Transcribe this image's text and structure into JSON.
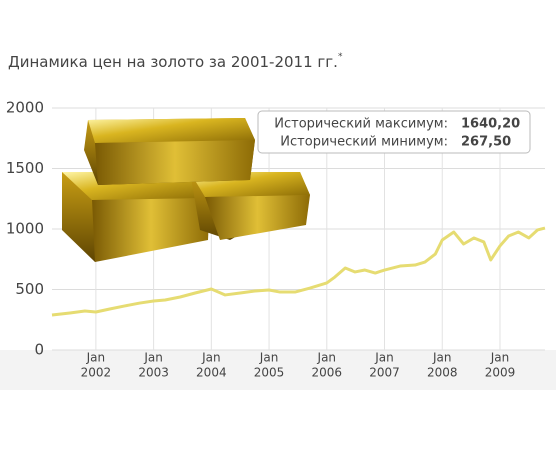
{
  "chart_data": {
    "type": "line",
    "title": "Динамика цен на золото за 2001-2011 гг.",
    "title_mark": "*",
    "annotations": [
      {
        "label": "Исторический максимум:",
        "value": "1640,20"
      },
      {
        "label": "Исторический минимум:",
        "value": "267,50"
      }
    ],
    "x": [
      2001.24,
      2001.55,
      2001.81,
      2002.0,
      2002.24,
      2002.5,
      2002.76,
      2003.0,
      2003.2,
      2003.46,
      2003.72,
      2004.0,
      2004.24,
      2004.5,
      2004.76,
      2005.0,
      2005.19,
      2005.45,
      2005.71,
      2006.0,
      2006.14,
      2006.32,
      2006.49,
      2006.66,
      2006.84,
      2007.0,
      2007.27,
      2007.53,
      2007.7,
      2007.88,
      2008.0,
      2008.2,
      2008.37,
      2008.55,
      2008.72,
      2008.84,
      2009.0,
      2009.15,
      2009.32,
      2009.5,
      2009.65,
      2009.78
    ],
    "series": [
      {
        "color": "#e6dc72",
        "values": [
          289,
          306,
          322,
          314,
          339,
          364,
          388,
          405,
          413,
          438,
          471,
          504,
          455,
          471,
          488,
          496,
          479,
          479,
          512,
          554,
          603,
          678,
          645,
          661,
          636,
          661,
          694,
          702,
          727,
          793,
          909,
          975,
          876,
          926,
          893,
          744,
          860,
          942,
          975,
          926,
          992,
          1008
        ]
      }
    ],
    "xlim": [
      2001.24,
      2009.78
    ],
    "xticks": [
      {
        "value": 2002,
        "label": "2002",
        "month": "Jan"
      },
      {
        "value": 2003,
        "label": "2003",
        "month": "Jan"
      },
      {
        "value": 2004,
        "label": "2004",
        "month": "Jan"
      },
      {
        "value": 2005,
        "label": "2005",
        "month": "Jan"
      },
      {
        "value": 2006,
        "label": "2006",
        "month": "Jan"
      },
      {
        "value": 2007,
        "label": "2007",
        "month": "Jan"
      },
      {
        "value": 2008,
        "label": "2008",
        "month": "Jan"
      },
      {
        "value": 2009,
        "label": "2009",
        "month": "Jan"
      }
    ],
    "ylim": [
      0,
      2000
    ],
    "yticks": [
      0,
      500,
      1000,
      1500,
      2000
    ],
    "grid": true
  }
}
